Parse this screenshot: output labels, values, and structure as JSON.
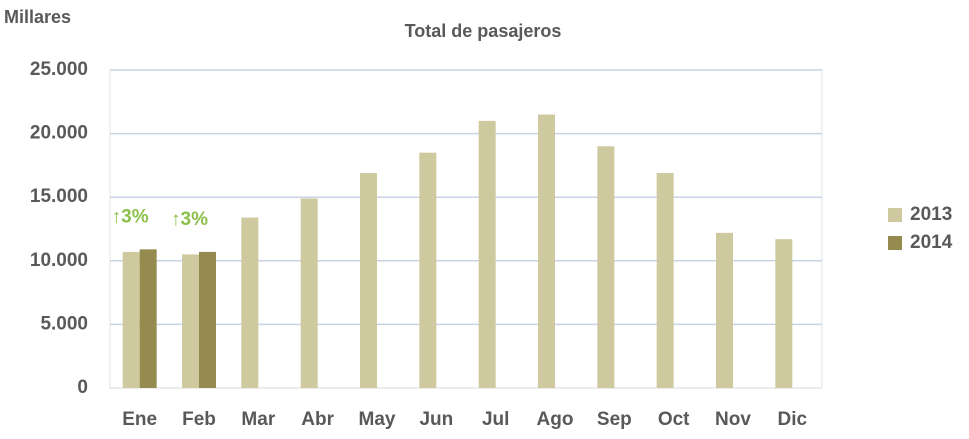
{
  "chart_data": {
    "type": "bar",
    "title": "Total de pasajeros",
    "y_axis_label": "Millares",
    "categories": [
      "Ene",
      "Feb",
      "Mar",
      "Abr",
      "May",
      "Jun",
      "Jul",
      "Ago",
      "Sep",
      "Oct",
      "Nov",
      "Dic"
    ],
    "series": [
      {
        "name": "2013",
        "color": "#cfc99f",
        "values": [
          10700,
          10500,
          13400,
          14900,
          16900,
          18500,
          21000,
          21500,
          19000,
          16900,
          12200,
          11700
        ]
      },
      {
        "name": "2014",
        "color": "#958b4f",
        "values": [
          10900,
          10700,
          null,
          null,
          null,
          null,
          null,
          null,
          null,
          null,
          null,
          null
        ]
      }
    ],
    "annotations": [
      "↑3%",
      "↑3%"
    ],
    "annotation_color": "#8cc04a",
    "ylim": [
      0,
      25000
    ],
    "yticks": [
      0,
      {
        "value": 5000,
        "label": "5.000"
      },
      {
        "value": 10000,
        "label": "10.000"
      },
      {
        "value": 15000,
        "label": "15.000"
      },
      {
        "value": 20000,
        "label": "20.000"
      },
      {
        "value": 25000,
        "label": "25.000"
      }
    ],
    "grid": true,
    "legend": "right"
  }
}
